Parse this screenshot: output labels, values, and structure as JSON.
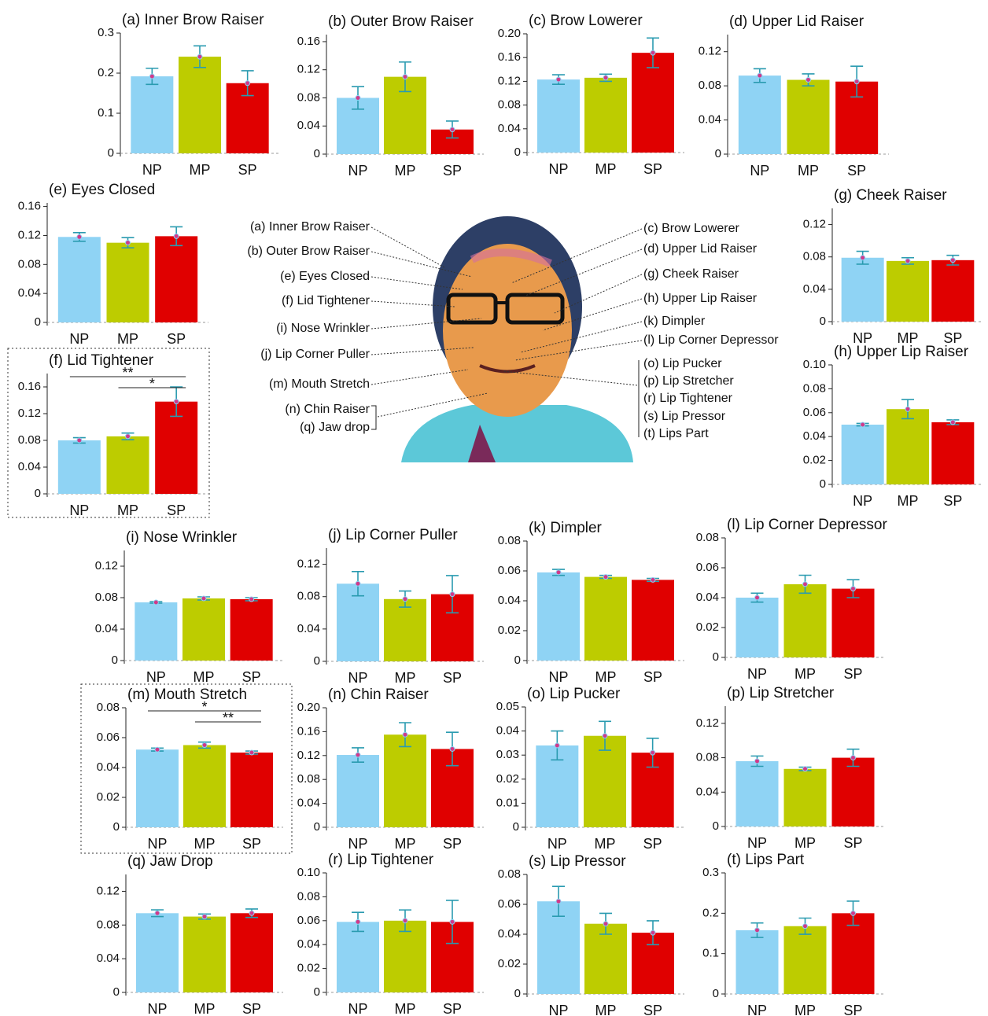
{
  "colors": [
    "#8fd3f4",
    "#bdcc00",
    "#e00000"
  ],
  "face_labels": {
    "left": [
      "(a) Inner Brow Raiser",
      "(b) Outer Brow Raiser",
      "(e) Eyes Closed",
      "(f) Lid Tightener",
      "(i) Nose Wrinkler",
      "(j) Lip Corner Puller",
      "(m) Mouth Stretch",
      "(n) Chin Raiser",
      "(q) Jaw drop"
    ],
    "right": [
      "(c) Brow Lowerer",
      "(d) Upper Lid Raiser",
      "(g) Cheek Raiser",
      "(h) Upper Lip Raiser",
      "(k) Dimpler",
      "(l) Lip Corner Depressor",
      "(o) Lip Pucker",
      "(p) Lip Stretcher",
      "(r) Lip Tightener",
      "(s) Lip Pressor",
      "(t) Lips Part"
    ]
  },
  "chart_data": [
    {
      "type": "bar",
      "title": "(a) Inner Brow Raiser",
      "categories": [
        "NP",
        "MP",
        "SP"
      ],
      "values": [
        0.192,
        0.241,
        0.175
      ],
      "errors": [
        0.02,
        0.027,
        0.031
      ],
      "ylim": [
        0,
        0.3
      ],
      "yticks": [
        0,
        0.1,
        0.2,
        0.3
      ]
    },
    {
      "type": "bar",
      "title": "(b) Outer Brow Raiser",
      "categories": [
        "NP",
        "MP",
        "SP"
      ],
      "values": [
        0.08,
        0.11,
        0.035
      ],
      "errors": [
        0.016,
        0.021,
        0.012
      ],
      "ylim": [
        0,
        0.17
      ],
      "yticks": [
        0,
        0.04,
        0.08,
        0.12,
        0.16
      ]
    },
    {
      "type": "bar",
      "title": "(c) Brow Lowerer",
      "categories": [
        "NP",
        "MP",
        "SP"
      ],
      "values": [
        0.123,
        0.126,
        0.168
      ],
      "errors": [
        0.008,
        0.006,
        0.025
      ],
      "ylim": [
        0,
        0.2
      ],
      "yticks": [
        0,
        0.04,
        0.08,
        0.12,
        0.16,
        {
          "value": 0.2,
          "label": "0.20"
        }
      ]
    },
    {
      "type": "bar",
      "title": "(d) Upper Lid Raiser",
      "categories": [
        "NP",
        "MP",
        "SP"
      ],
      "values": [
        0.092,
        0.087,
        0.085
      ],
      "errors": [
        0.008,
        0.007,
        0.018
      ],
      "ylim": [
        0,
        0.14
      ],
      "yticks": [
        0,
        0.04,
        0.08,
        0.12
      ]
    },
    {
      "type": "bar",
      "title": "(e) Eyes Closed",
      "categories": [
        "NP",
        "MP",
        "SP"
      ],
      "values": [
        0.118,
        0.11,
        0.119
      ],
      "errors": [
        0.006,
        0.007,
        0.013
      ],
      "ylim": [
        0,
        0.165
      ],
      "yticks": [
        0,
        0.04,
        0.08,
        0.12,
        0.16
      ]
    },
    {
      "type": "bar",
      "title": "(f) Lid Tightener",
      "categories": [
        "NP",
        "MP",
        "SP"
      ],
      "values": [
        0.08,
        0.086,
        0.138
      ],
      "errors": [
        0.004,
        0.005,
        0.022
      ],
      "ylim": [
        0,
        0.18
      ],
      "yticks": [
        0,
        0.04,
        0.08,
        0.12,
        0.16
      ],
      "significance": [
        {
          "pair": [
            "NP",
            "SP"
          ],
          "label": "**"
        },
        {
          "pair": [
            "MP",
            "SP"
          ],
          "label": "*"
        }
      ]
    },
    {
      "type": "bar",
      "title": "(g) Cheek Raiser",
      "categories": [
        "NP",
        "MP",
        "SP"
      ],
      "values": [
        0.079,
        0.075,
        0.076
      ],
      "errors": [
        0.008,
        0.004,
        0.006
      ],
      "ylim": [
        0,
        0.14
      ],
      "yticks": [
        0,
        0.04,
        0.08,
        0.12
      ]
    },
    {
      "type": "bar",
      "title": "(h) Upper Lip Raiser",
      "categories": [
        "NP",
        "MP",
        "SP"
      ],
      "values": [
        0.05,
        0.063,
        0.052
      ],
      "errors": [
        0.001,
        0.008,
        0.002
      ],
      "ylim": [
        0,
        0.1
      ],
      "yticks": [
        0,
        0.02,
        0.04,
        0.06,
        0.08,
        {
          "value": 0.1,
          "label": "0.10"
        }
      ]
    },
    {
      "type": "bar",
      "title": "(i) Nose Wrinkler",
      "categories": [
        "NP",
        "MP",
        "SP"
      ],
      "values": [
        0.074,
        0.079,
        0.078
      ],
      "errors": [
        0.001,
        0.002,
        0.002
      ],
      "ylim": [
        0,
        0.14
      ],
      "yticks": [
        0,
        0.04,
        0.08,
        0.12
      ]
    },
    {
      "type": "bar",
      "title": "(j) Lip Corner Puller",
      "categories": [
        "NP",
        "MP",
        "SP"
      ],
      "values": [
        0.096,
        0.077,
        0.083
      ],
      "errors": [
        0.015,
        0.01,
        0.023
      ],
      "ylim": [
        0,
        0.14
      ],
      "yticks": [
        0,
        0.04,
        0.08,
        0.12
      ]
    },
    {
      "type": "bar",
      "title": "(k) Dimpler",
      "categories": [
        "NP",
        "MP",
        "SP"
      ],
      "values": [
        0.059,
        0.056,
        0.054
      ],
      "errors": [
        0.002,
        0.001,
        0.001
      ],
      "ylim": [
        0,
        0.08
      ],
      "yticks": [
        0,
        0.02,
        0.04,
        0.06,
        0.08
      ]
    },
    {
      "type": "bar",
      "title": "(l) Lip Corner Depressor",
      "categories": [
        "NP",
        "MP",
        "SP"
      ],
      "values": [
        0.04,
        0.049,
        0.046
      ],
      "errors": [
        0.003,
        0.006,
        0.006
      ],
      "ylim": [
        0,
        0.08
      ],
      "yticks": [
        0,
        0.02,
        0.04,
        0.06,
        0.08
      ]
    },
    {
      "type": "bar",
      "title": "(m) Mouth Stretch",
      "categories": [
        "NP",
        "MP",
        "SP"
      ],
      "values": [
        0.052,
        0.055,
        0.05
      ],
      "errors": [
        0.001,
        0.002,
        0.001
      ],
      "ylim": [
        0,
        0.08
      ],
      "yticks": [
        0,
        0.02,
        0.04,
        0.06,
        0.08
      ],
      "significance": [
        {
          "pair": [
            "NP",
            "SP"
          ],
          "label": "*"
        },
        {
          "pair": [
            "MP",
            "SP"
          ],
          "label": "**"
        }
      ]
    },
    {
      "type": "bar",
      "title": "(n) Chin Raiser",
      "categories": [
        "NP",
        "MP",
        "SP"
      ],
      "values": [
        0.121,
        0.155,
        0.131
      ],
      "errors": [
        0.012,
        0.02,
        0.028
      ],
      "ylim": [
        0,
        0.2
      ],
      "yticks": [
        0,
        0.04,
        0.08,
        0.12,
        0.16,
        {
          "value": 0.2,
          "label": "0.20"
        }
      ]
    },
    {
      "type": "bar",
      "title": "(o) Lip Pucker",
      "categories": [
        "NP",
        "MP",
        "SP"
      ],
      "values": [
        0.034,
        0.038,
        0.031
      ],
      "errors": [
        0.006,
        0.006,
        0.006
      ],
      "ylim": [
        0,
        0.05
      ],
      "yticks": [
        0,
        0.01,
        0.02,
        0.03,
        0.04,
        0.05
      ]
    },
    {
      "type": "bar",
      "title": "(p) Lip Stretcher",
      "categories": [
        "NP",
        "MP",
        "SP"
      ],
      "values": [
        0.076,
        0.067,
        0.08
      ],
      "errors": [
        0.006,
        0.002,
        0.01
      ],
      "ylim": [
        0,
        0.14
      ],
      "yticks": [
        0,
        0.04,
        0.08,
        0.12
      ]
    },
    {
      "type": "bar",
      "title": "(q) Jaw Drop",
      "categories": [
        "NP",
        "MP",
        "SP"
      ],
      "values": [
        0.094,
        0.09,
        0.094
      ],
      "errors": [
        0.004,
        0.003,
        0.005
      ],
      "ylim": [
        0,
        0.14
      ],
      "yticks": [
        0,
        0.04,
        0.08,
        0.12
      ]
    },
    {
      "type": "bar",
      "title": "(r) Lip Tightener",
      "categories": [
        "NP",
        "MP",
        "SP"
      ],
      "values": [
        0.059,
        0.06,
        0.059
      ],
      "errors": [
        0.008,
        0.009,
        0.018
      ],
      "ylim": [
        0,
        0.1
      ],
      "yticks": [
        0,
        0.02,
        0.04,
        0.06,
        0.08,
        {
          "value": 0.1,
          "label": "0.10"
        }
      ]
    },
    {
      "type": "bar",
      "title": "(s) Lip Pressor",
      "categories": [
        "NP",
        "MP",
        "SP"
      ],
      "values": [
        0.062,
        0.047,
        0.041
      ],
      "errors": [
        0.01,
        0.007,
        0.008
      ],
      "ylim": [
        0,
        0.08
      ],
      "yticks": [
        0,
        0.02,
        0.04,
        0.06,
        0.08
      ]
    },
    {
      "type": "bar",
      "title": "(t) Lips Part",
      "categories": [
        "NP",
        "MP",
        "SP"
      ],
      "values": [
        0.158,
        0.168,
        0.2
      ],
      "errors": [
        0.018,
        0.02,
        0.03
      ],
      "ylim": [
        0,
        0.3
      ],
      "yticks": [
        0,
        0.1,
        0.2,
        0.3
      ]
    }
  ]
}
